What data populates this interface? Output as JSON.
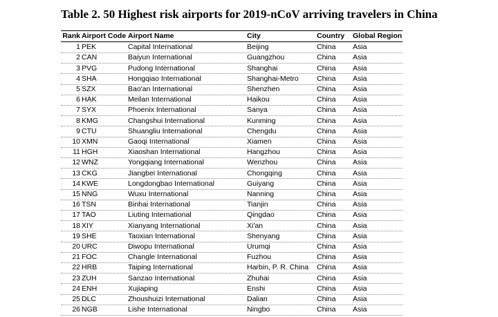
{
  "table": {
    "title": "Table 2. 50 Highest risk airports for 2019-nCoV arriving travelers in China",
    "header": [
      "Rank",
      "Airport Code",
      "Airport Name",
      "City",
      "Country",
      "Global Region"
    ],
    "rows": [
      [
        1,
        "PEK",
        "Capital International",
        "Beijing",
        "China",
        "Asia"
      ],
      [
        2,
        "CAN",
        "Baiyun International",
        "Guangzhou",
        "China",
        "Asia"
      ],
      [
        3,
        "PVG",
        "Pudong International",
        "Shanghai",
        "China",
        "Asia"
      ],
      [
        4,
        "SHA",
        "Hongqiao International",
        "Shanghai-Metro",
        "China",
        "Asia"
      ],
      [
        5,
        "SZX",
        "Bao'an International",
        "Shenzhen",
        "China",
        "Asia"
      ],
      [
        6,
        "HAK",
        "Meilan International",
        "Haikou",
        "China",
        "Asia"
      ],
      [
        7,
        "SYX",
        "Phoenix International",
        "Sanya",
        "China",
        "Asia"
      ],
      [
        8,
        "KMG",
        "Changshui International",
        "Kunming",
        "China",
        "Asia"
      ],
      [
        9,
        "CTU",
        "Shuangliu International",
        "Chengdu",
        "China",
        "Asia"
      ],
      [
        10,
        "XMN",
        "Gaoqi International",
        "Xiamen",
        "China",
        "Asia"
      ],
      [
        11,
        "HGH",
        "Xiaoshan International",
        "Hangzhou",
        "China",
        "Asia"
      ],
      [
        12,
        "WNZ",
        "Yongqiang International",
        "Wenzhou",
        "China",
        "Asia"
      ],
      [
        13,
        "CKG",
        "Jiangbei International",
        "Chongqing",
        "China",
        "Asia"
      ],
      [
        14,
        "KWE",
        "Longdongbao International",
        "Guiyang",
        "China",
        "Asia"
      ],
      [
        15,
        "NNG",
        "Wuxu International",
        "Nanning",
        "China",
        "Asia"
      ],
      [
        16,
        "TSN",
        "Binhai International",
        "Tianjin",
        "China",
        "Asia"
      ],
      [
        17,
        "TAO",
        "Liuting International",
        "Qingdao",
        "China",
        "Asia"
      ],
      [
        18,
        "XIY",
        "Xianyang International",
        "Xi'an",
        "China",
        "Asia"
      ],
      [
        19,
        "SHE",
        "Taoxian International",
        "Shenyang",
        "China",
        "Asia"
      ],
      [
        20,
        "URC",
        "Diwopu International",
        "Urumqi",
        "China",
        "Asia"
      ],
      [
        21,
        "FOC",
        "Changle International",
        "Fuzhou",
        "China",
        "Asia"
      ],
      [
        22,
        "HRB",
        "Taiping International",
        "Harbin, P. R. China",
        "China",
        "Asia"
      ],
      [
        23,
        "ZUH",
        "Sanzao International",
        "Zhuhai",
        "China",
        "Asia"
      ],
      [
        24,
        "ENH",
        "Xujiaping",
        "Enshi",
        "China",
        "Asia"
      ],
      [
        25,
        "DLC",
        "Zhoushuizi International",
        "Dalian",
        "China",
        "Asia"
      ],
      [
        26,
        "NGB",
        "Lishe International",
        "Ningbo",
        "China",
        "Asia"
      ]
    ]
  }
}
